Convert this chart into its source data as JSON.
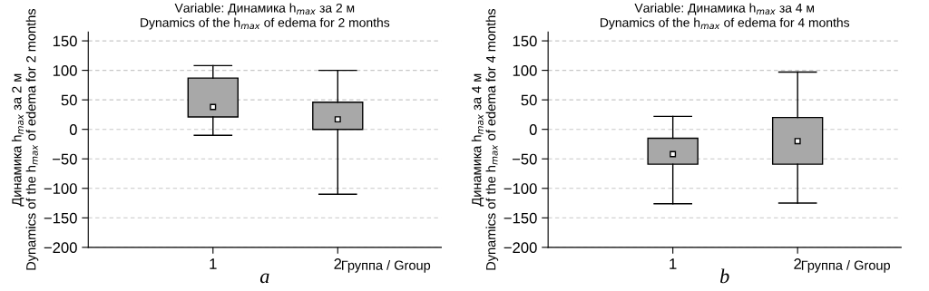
{
  "chart_data": [
    {
      "type": "box",
      "title": "Variable: Динамика h$_{max}$ за 2 м\nDynamics of the h$_{max}$ of edema for 2 months",
      "ylabel": "Динамика h$_{max}$ за 2 м\nDynamics of the h$_{max}$ of edema for 2 months",
      "xlabel": "Группа / Group",
      "categories": [
        "1",
        "2"
      ],
      "color": "#a8a8a8",
      "boxes": [
        {
          "low": -10,
          "q1": 21,
          "median": 38,
          "q3": 87,
          "high": 108
        },
        {
          "low": -110,
          "q1": 0,
          "median": 17,
          "q3": 46,
          "high": 100
        }
      ],
      "ylim": [
        -200,
        165
      ],
      "yticks": [
        -200,
        -150,
        -100,
        -50,
        0,
        50,
        100,
        150
      ],
      "grid": "y",
      "annotations": [
        "a"
      ]
    },
    {
      "type": "box",
      "title": "Variable: Динамика h$_{max}$ за 4 м\nDynamics of the h$_{max}$ of edema for 4 months",
      "ylabel": "Динамика h$_{max}$ за 4 м\nDynamics of the h$_{max}$ of edema for 4 months",
      "xlabel": "Группа / Group",
      "categories": [
        "1",
        "2"
      ],
      "color": "#a8a8a8",
      "boxes": [
        {
          "low": -126,
          "q1": -59,
          "median": -42,
          "q3": -15,
          "high": 22
        },
        {
          "low": -125,
          "q1": -59,
          "median": -20,
          "q3": 20,
          "high": 97
        }
      ],
      "ylim": [
        -200,
        165
      ],
      "yticks": [
        -200,
        -150,
        -100,
        -50,
        0,
        50,
        100,
        150
      ],
      "grid": "y",
      "annotations": [
        "b"
      ]
    }
  ]
}
